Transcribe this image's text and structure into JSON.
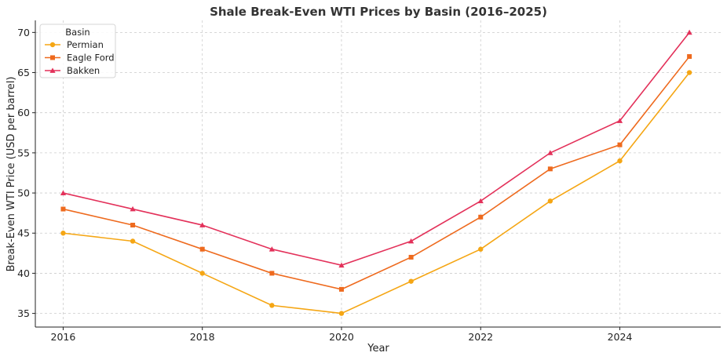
{
  "chart_data": {
    "type": "line",
    "title": "Shale Break-Even WTI Prices by Basin (2016–2025)",
    "xlabel": "Year",
    "ylabel": "Break-Even WTI Price (USD per barrel)",
    "x": [
      2016,
      2017,
      2018,
      2019,
      2020,
      2021,
      2022,
      2023,
      2024,
      2025
    ],
    "xlim": [
      2015.6,
      2025.45
    ],
    "ylim": [
      33.3,
      71.5
    ],
    "xticks": [
      2016,
      2018,
      2020,
      2022,
      2024
    ],
    "yticks": [
      35,
      40,
      45,
      50,
      55,
      60,
      65,
      70
    ],
    "grid": true,
    "legend": {
      "title": "Basin",
      "placement": "top-left"
    },
    "series": [
      {
        "name": "Permian",
        "color": "#f5a614",
        "marker": "circle",
        "values": [
          45,
          44,
          40,
          36,
          35,
          39,
          43,
          49,
          54,
          65
        ]
      },
      {
        "name": "Eagle Ford",
        "color": "#ee6a1e",
        "marker": "square",
        "values": [
          48,
          46,
          43,
          40,
          38,
          42,
          47,
          53,
          56,
          67
        ]
      },
      {
        "name": "Bakken",
        "color": "#e3315a",
        "marker": "triangle",
        "values": [
          50,
          48,
          46,
          43,
          41,
          44,
          49,
          55,
          59,
          70
        ]
      }
    ]
  }
}
